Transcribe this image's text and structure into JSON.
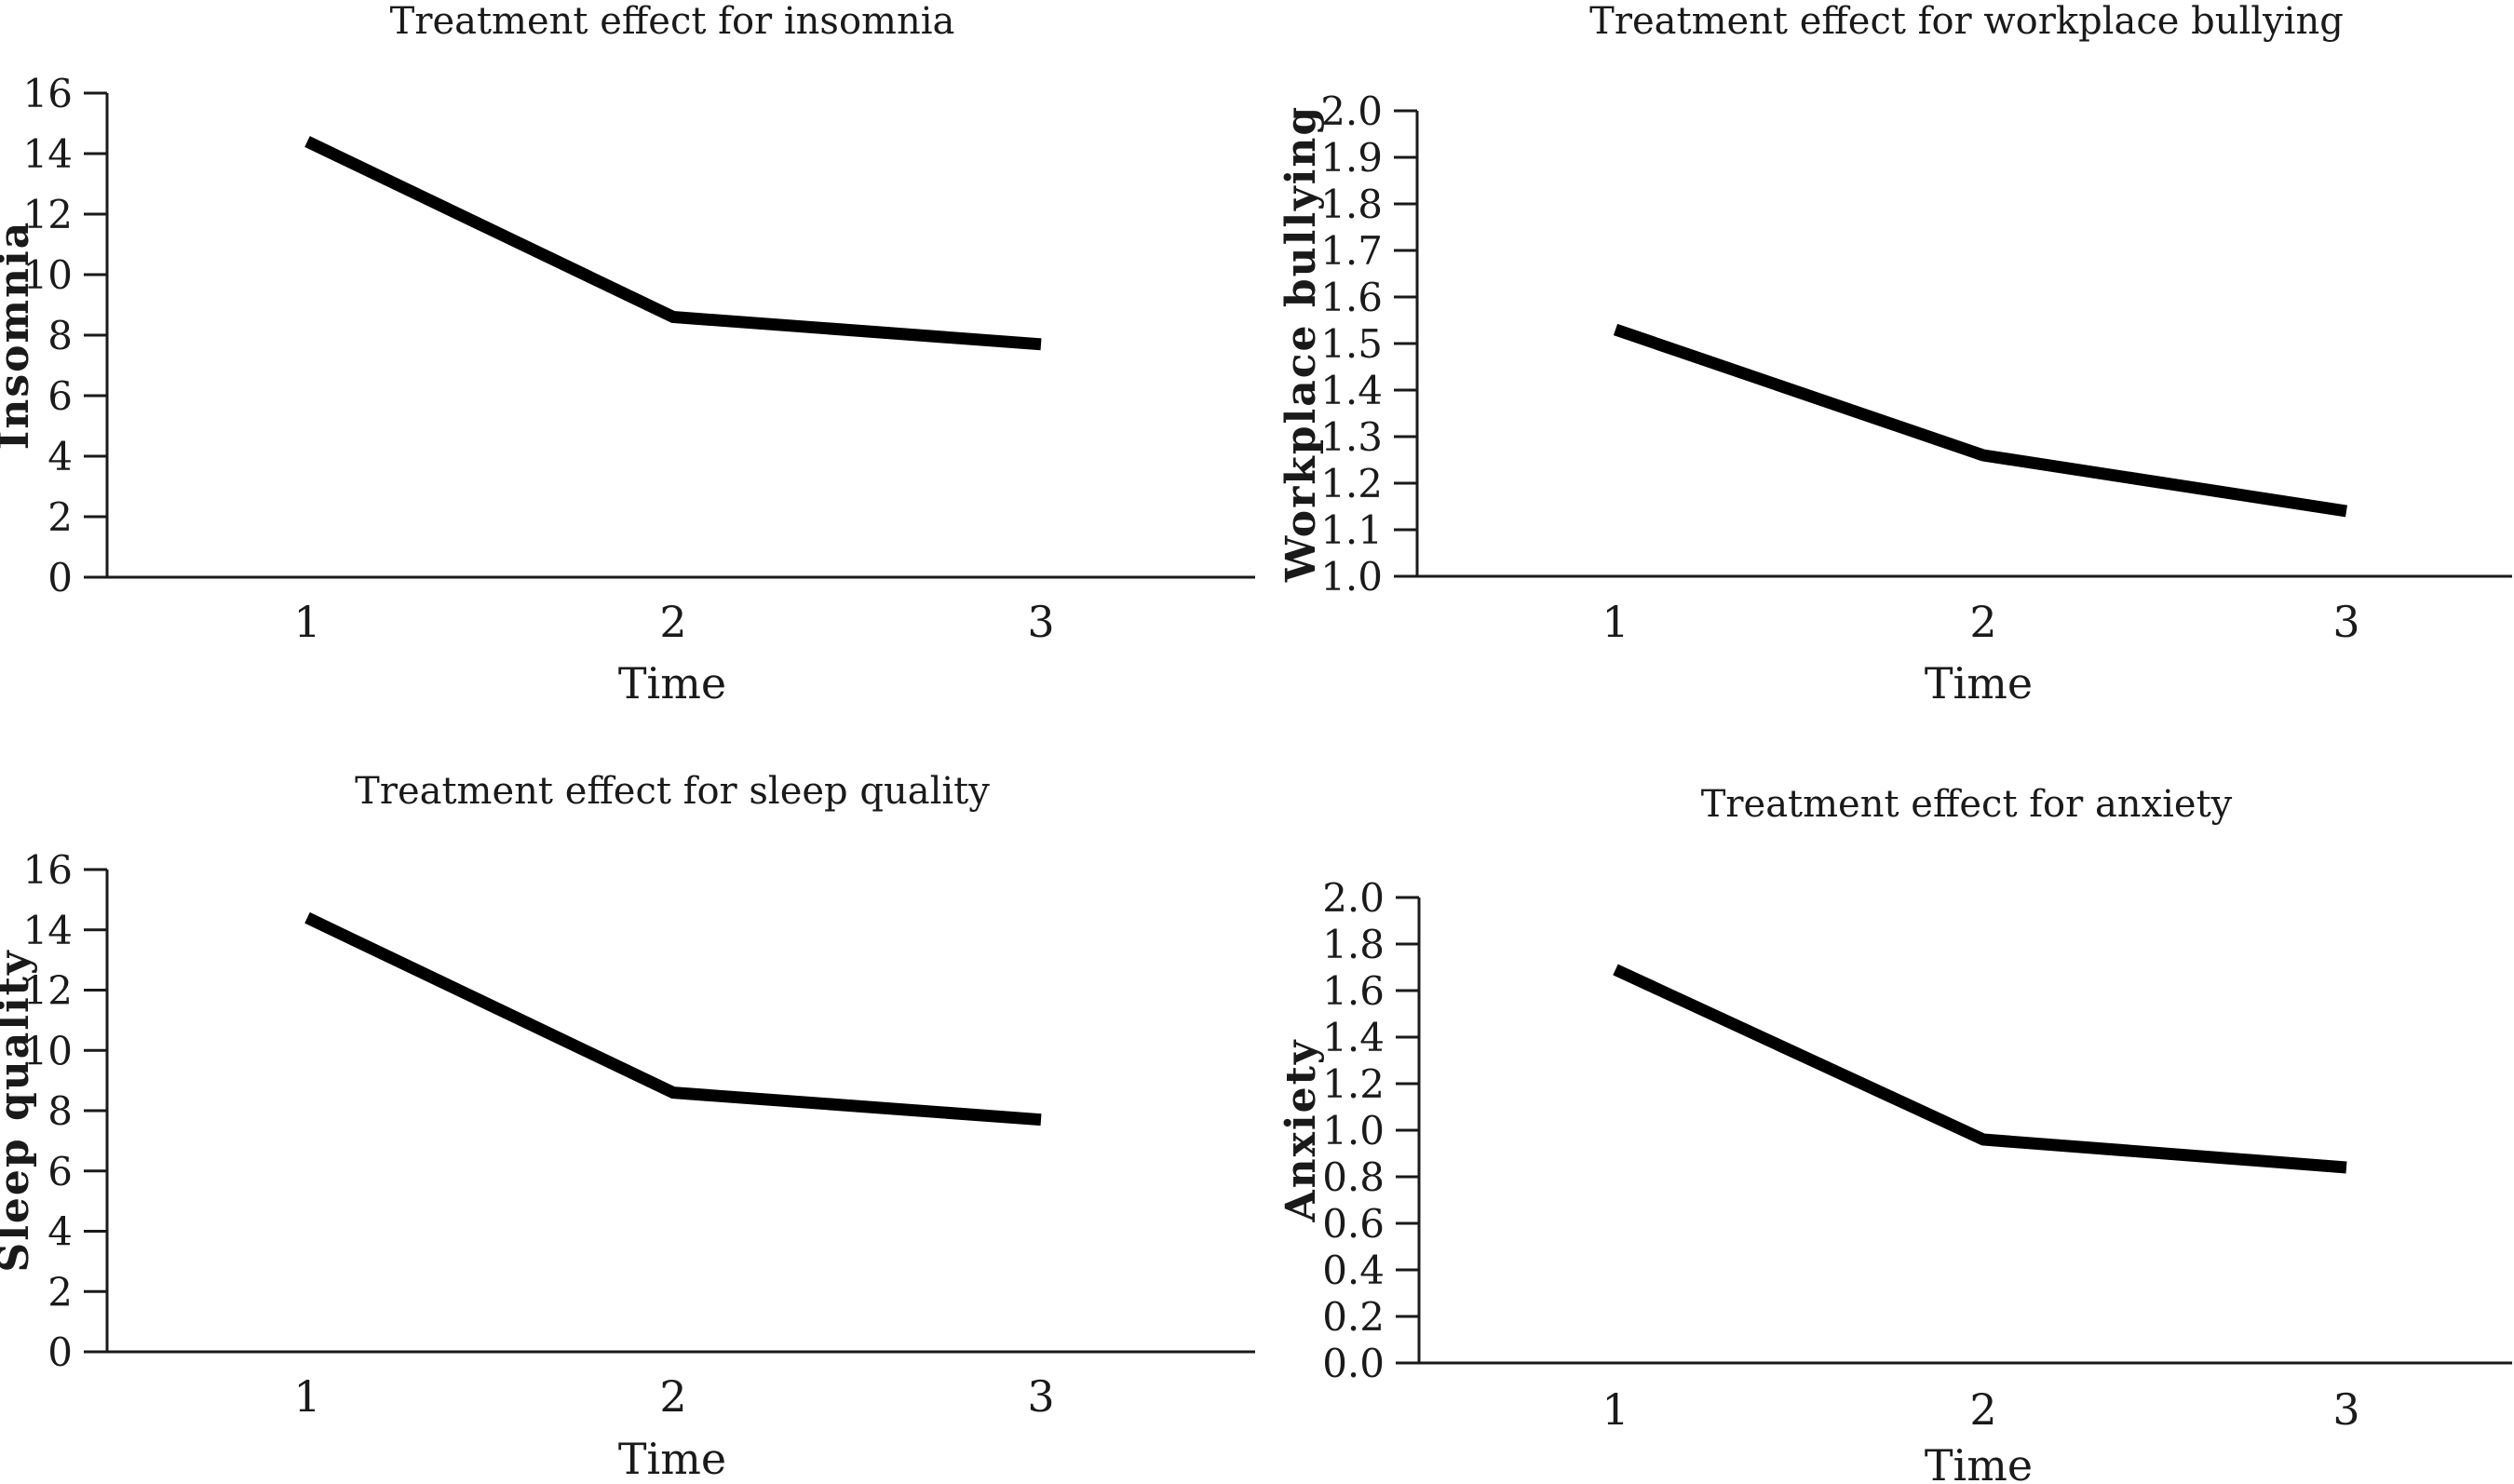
{
  "page": {
    "background": "#ffffff",
    "text_color": "#1a1a1a"
  },
  "chart_data": [
    {
      "type": "line",
      "title": "Treatment effect for insomnia",
      "xlabel": "Time",
      "ylabel": "Insomnia",
      "x": [
        1,
        2,
        3
      ],
      "x_labels": [
        "1",
        "2",
        "3"
      ],
      "values": [
        14.4,
        8.6,
        7.7
      ],
      "ylim": [
        0,
        16
      ],
      "ytick_labels": [
        "0",
        "2",
        "4",
        "6",
        "8",
        "10",
        "12",
        "14",
        "16"
      ],
      "grid": false,
      "legend": null,
      "line_color": "#000000"
    },
    {
      "type": "line",
      "title": "Treatment effect for workplace bullying",
      "xlabel": "Time",
      "ylabel": "Workplace bullying",
      "x": [
        1,
        2,
        3
      ],
      "x_labels": [
        "1",
        "2",
        "3"
      ],
      "values": [
        1.53,
        1.26,
        1.14
      ],
      "ylim": [
        1.0,
        2.0
      ],
      "ytick_labels": [
        "1.0",
        "1.1",
        "1.2",
        "1.3",
        "1.4",
        "1.5",
        "1.6",
        "1.7",
        "1.8",
        "1.9",
        "2.0"
      ],
      "grid": false,
      "legend": null,
      "line_color": "#000000"
    },
    {
      "type": "line",
      "title": "Treatment effect for sleep quality",
      "xlabel": "Time",
      "ylabel": "Sleep quality",
      "x": [
        1,
        2,
        3
      ],
      "x_labels": [
        "1",
        "2",
        "3"
      ],
      "values": [
        14.4,
        8.6,
        7.7
      ],
      "ylim": [
        0,
        16
      ],
      "ytick_labels": [
        "0",
        "2",
        "4",
        "6",
        "8",
        "10",
        "12",
        "14",
        "16"
      ],
      "grid": false,
      "legend": null,
      "line_color": "#000000"
    },
    {
      "type": "line",
      "title": "Treatment effect for anxiety",
      "xlabel": "Time",
      "ylabel": "Anxiety",
      "x": [
        1,
        2,
        3
      ],
      "x_labels": [
        "1",
        "2",
        "3"
      ],
      "values": [
        1.69,
        0.96,
        0.84
      ],
      "ylim": [
        0.0,
        2.0
      ],
      "ytick_labels": [
        "0.0",
        "0.2",
        "0.4",
        "0.6",
        "0.8",
        "1.0",
        "1.2",
        "1.4",
        "1.6",
        "1.8",
        "2.0"
      ],
      "grid": false,
      "legend": null,
      "line_color": "#000000"
    }
  ]
}
